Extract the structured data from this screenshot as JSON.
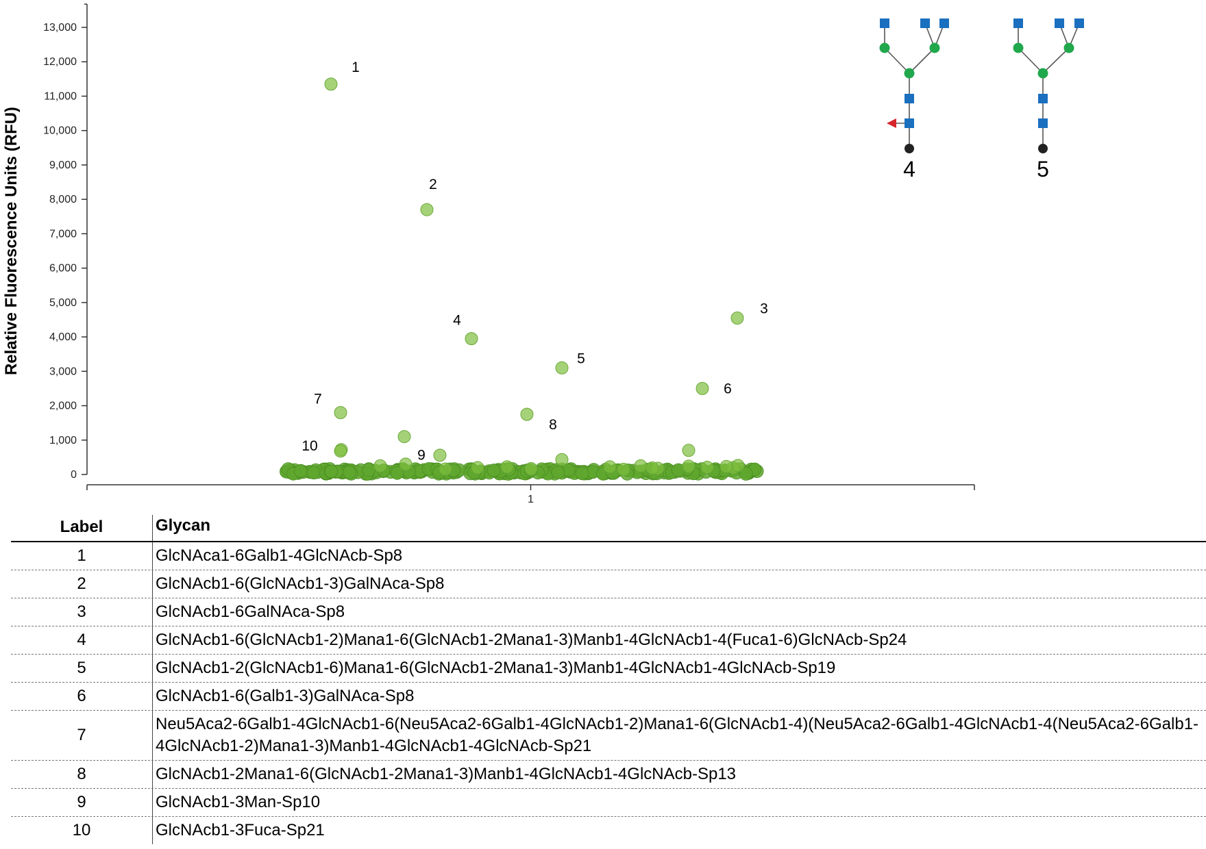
{
  "chart_data": {
    "type": "scatter",
    "ylabel": "Relative Fluorescence Units (RFU)",
    "xlabel": "",
    "x_categories": [
      "1"
    ],
    "ylim": [
      0,
      13000
    ],
    "yticks": [
      0,
      1000,
      2000,
      3000,
      4000,
      5000,
      6000,
      7000,
      8000,
      9000,
      10000,
      11000,
      12000,
      13000
    ],
    "ytick_labels": [
      "0",
      "1,000",
      "2,000",
      "3,000",
      "4,000",
      "5,000",
      "6,000",
      "7,000",
      "8,000",
      "9,000",
      "10,000",
      "11,000",
      "12,000",
      "13,000"
    ],
    "grid": false,
    "point_color": "#7fbf3f",
    "labeled_points": [
      {
        "label": "1",
        "y": 11350
      },
      {
        "label": "2",
        "y": 7700
      },
      {
        "label": "3",
        "y": 4550
      },
      {
        "label": "4",
        "y": 3950
      },
      {
        "label": "5",
        "y": 3100
      },
      {
        "label": "6",
        "y": 2500
      },
      {
        "label": "7",
        "y": 1800
      },
      {
        "label": "8",
        "y": 1750
      },
      {
        "label": "9",
        "y": 1100
      },
      {
        "label": "10",
        "y": 680
      }
    ],
    "other_points_y": [
      560,
      720,
      700,
      430,
      300,
      250,
      220,
      250,
      200,
      180,
      260,
      240,
      220,
      200,
      210,
      190,
      230,
      170,
      160,
      150
    ]
  },
  "glycan_structures": [
    "4",
    "5"
  ],
  "colors": {
    "glcnac": "#1a6fbf",
    "mannose": "#21a84d",
    "fucose": "#d7262b",
    "spacer": "#222222"
  },
  "table": {
    "headers": {
      "label": "Label",
      "glycan": "Glycan"
    },
    "rows": [
      {
        "label": "1",
        "glycan": "GlcNAca1-6Galb1-4GlcNAcb-Sp8"
      },
      {
        "label": "2",
        "glycan": "GlcNAcb1-6(GlcNAcb1-3)GalNAca-Sp8"
      },
      {
        "label": "3",
        "glycan": "GlcNAcb1-6GalNAca-Sp8"
      },
      {
        "label": "4",
        "glycan": "GlcNAcb1-6(GlcNAcb1-2)Mana1-6(GlcNAcb1-2Mana1-3)Manb1-4GlcNAcb1-4(Fuca1-6)GlcNAcb-Sp24"
      },
      {
        "label": "5",
        "glycan": "GlcNAcb1-2(GlcNAcb1-6)Mana1-6(GlcNAcb1-2Mana1-3)Manb1-4GlcNAcb1-4GlcNAcb-Sp19"
      },
      {
        "label": "6",
        "glycan": "GlcNAcb1-6(Galb1-3)GalNAca-Sp8"
      },
      {
        "label": "7",
        "glycan": "Neu5Aca2-6Galb1-4GlcNAcb1-6(Neu5Aca2-6Galb1-4GlcNAcb1-2)Mana1-6(GlcNAcb1-4)(Neu5Aca2-6Galb1-4GlcNAcb1-4(Neu5Aca2-6Galb1-4GlcNAcb1-2)Mana1-3)Manb1-4GlcNAcb1-4GlcNAcb-Sp21"
      },
      {
        "label": "8",
        "glycan": "GlcNAcb1-2Mana1-6(GlcNAcb1-2Mana1-3)Manb1-4GlcNAcb1-4GlcNAcb-Sp13"
      },
      {
        "label": "9",
        "glycan": "GlcNAcb1-3Man-Sp10"
      },
      {
        "label": "10",
        "glycan": "GlcNAcb1-3Fuca-Sp21"
      }
    ]
  }
}
